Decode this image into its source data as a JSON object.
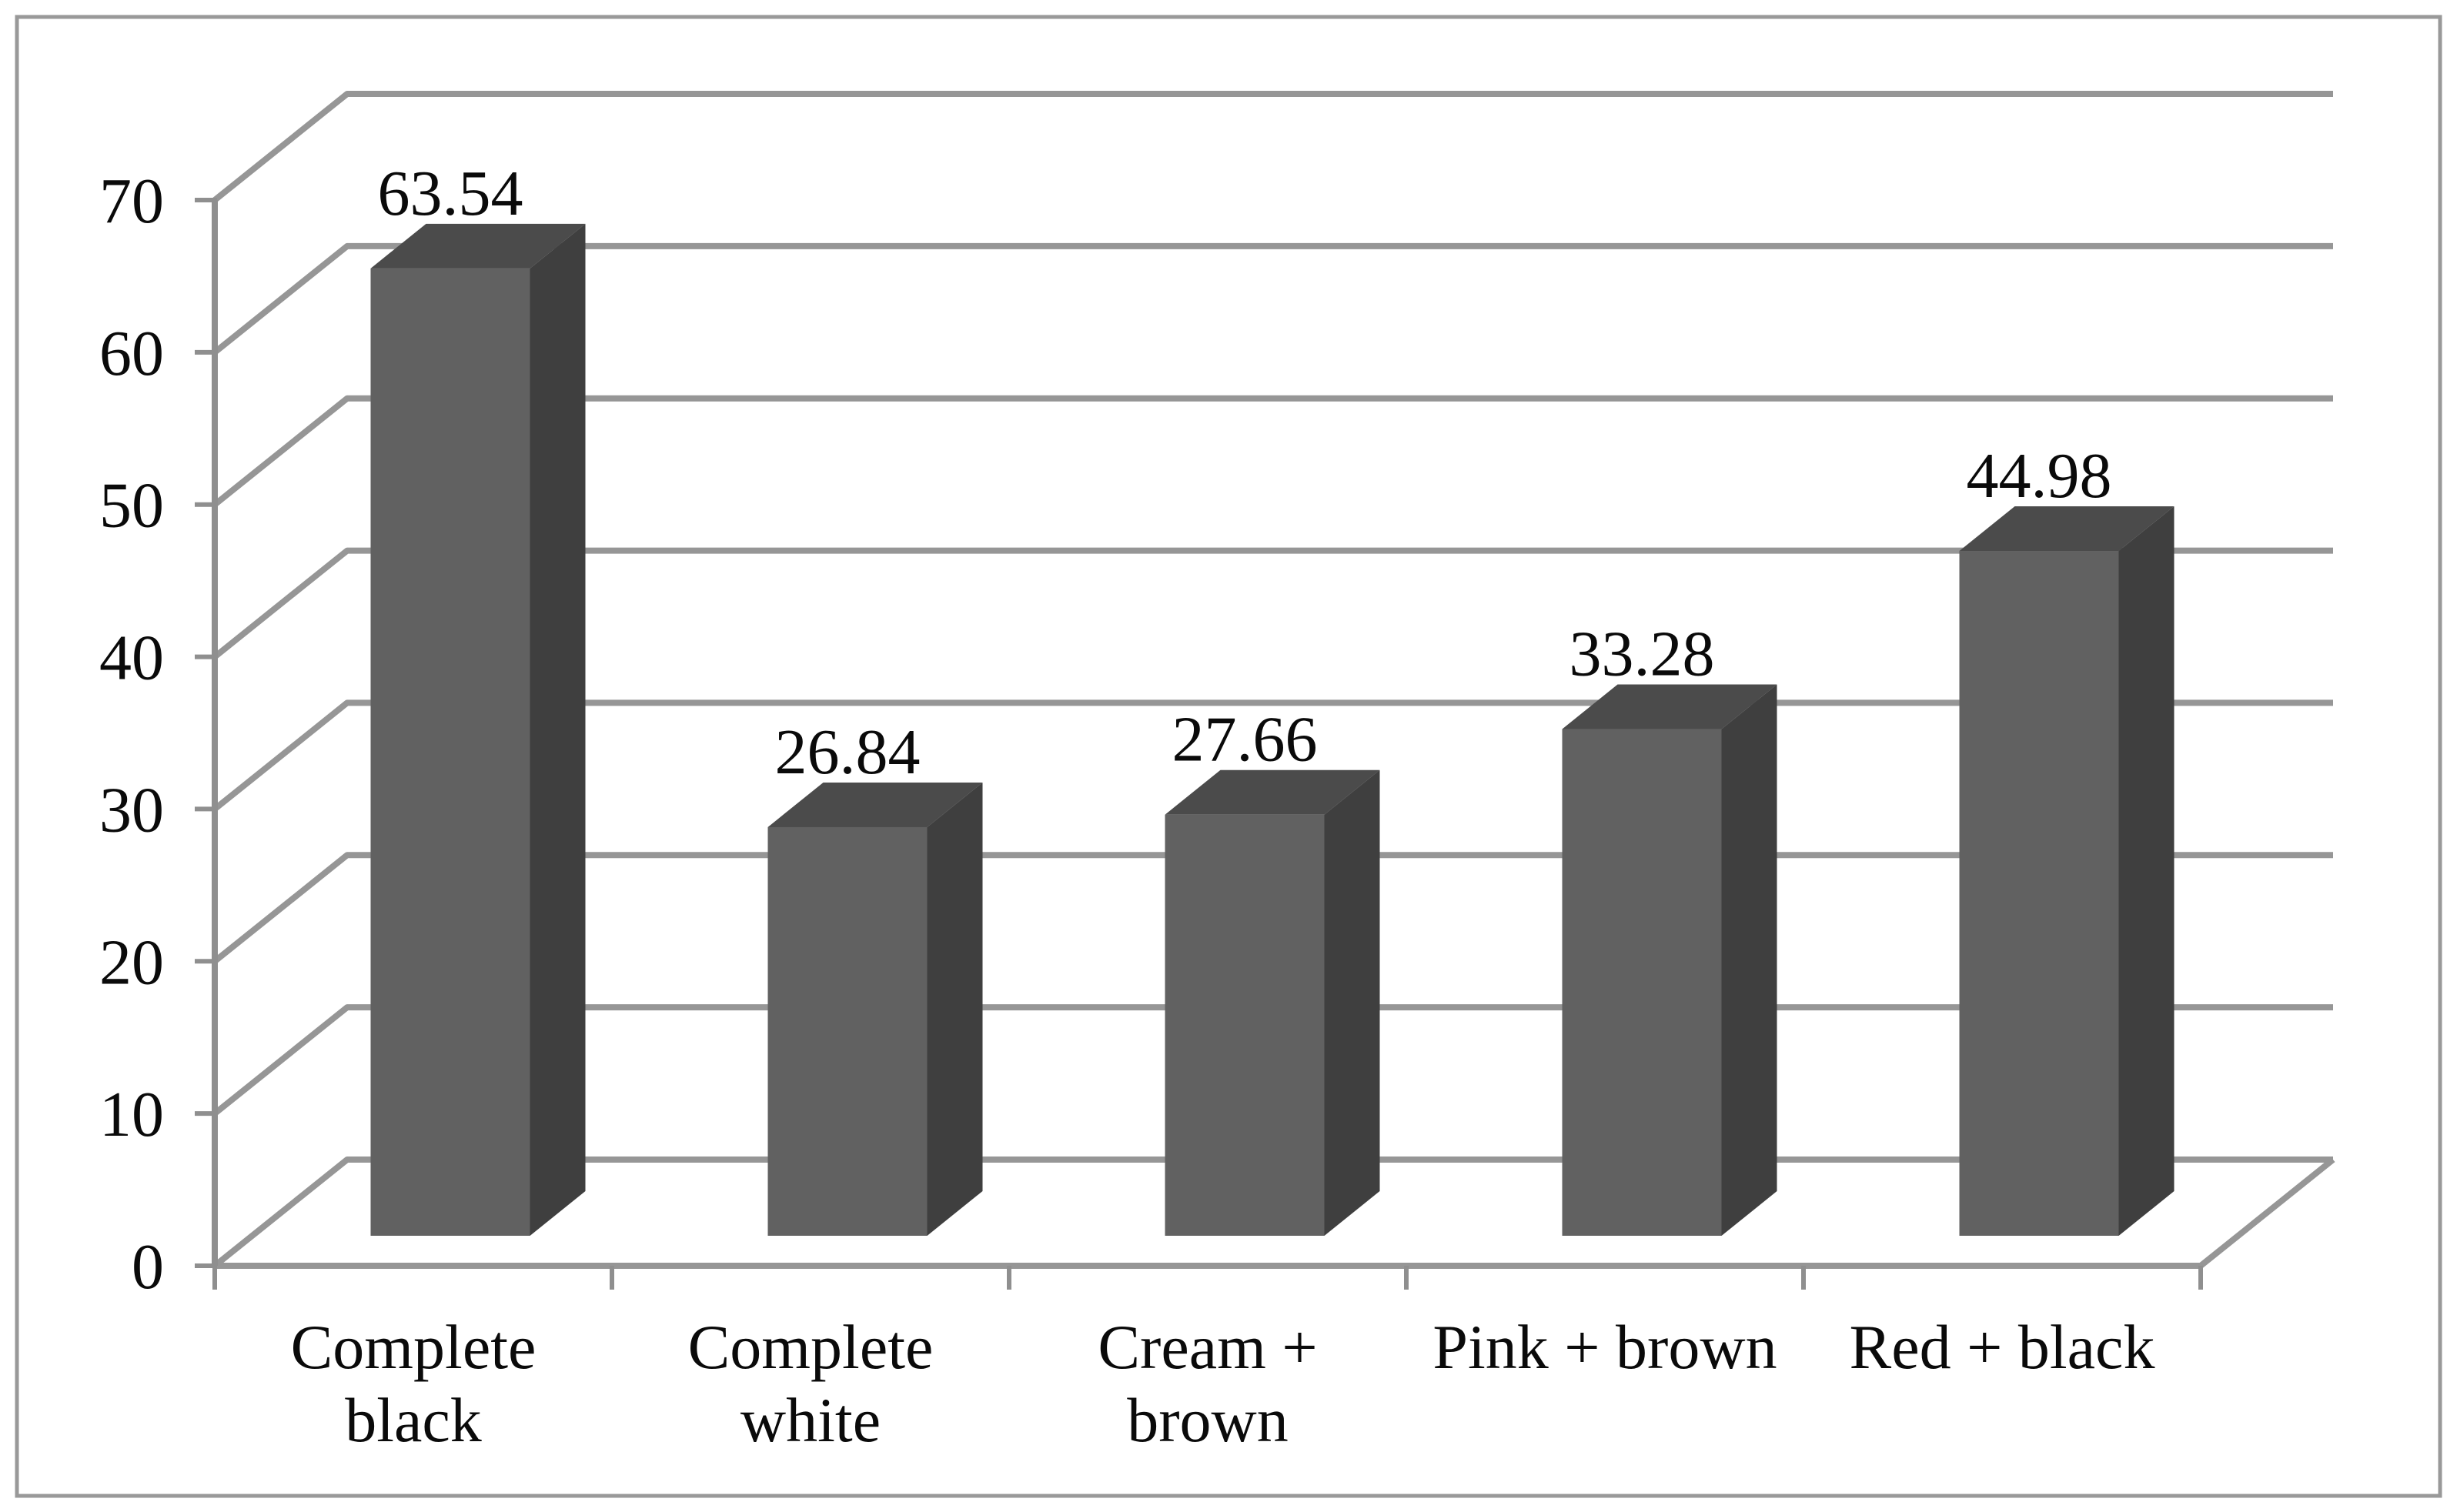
{
  "chart_data": {
    "type": "bar",
    "projection": "3d",
    "title": "",
    "xlabel": "",
    "ylabel": "",
    "categories": [
      "Complete black",
      "Complete white",
      "Cream + brown",
      "Pink + brown",
      "Red + black"
    ],
    "category_lines": [
      [
        "Complete",
        "black"
      ],
      [
        "Complete",
        "white"
      ],
      [
        "Cream +",
        "brown"
      ],
      [
        "Pink + brown"
      ],
      [
        "Red + black"
      ]
    ],
    "values": [
      63.54,
      26.84,
      27.66,
      33.28,
      44.98
    ],
    "data_labels": [
      "63.54",
      "26.84",
      "27.66",
      "33.28",
      "44.98"
    ],
    "ylim": [
      0,
      70
    ],
    "yticks": [
      0,
      10,
      20,
      30,
      40,
      50,
      60,
      70
    ],
    "grid": true,
    "legend_position": "none",
    "colors": {
      "bar_front": "#616161",
      "bar_side": "#3f3f3f",
      "bar_top": "#4b4b4b",
      "gridline": "#969696",
      "axis": "#8f8f8f",
      "tick": "#8f8f8f",
      "text": "#0a0a0a",
      "border": "#999999",
      "background": "#ffffff"
    }
  }
}
